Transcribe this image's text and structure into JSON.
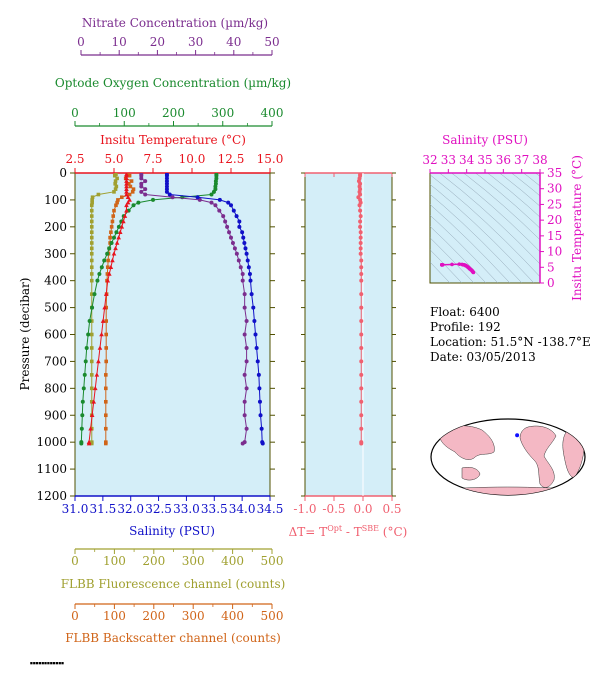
{
  "chart_data": {
    "type": "scatter",
    "colors": {
      "nitrate": "#7b2d8e",
      "oxygen": "#1a8a2e",
      "temperature": "#e8141e",
      "salinity": "#1010c8",
      "fluorescence": "#a0a030",
      "backscatter": "#d06418",
      "delta_t": "#f06070",
      "ts_salinity": "#e010c0",
      "plot_bg": "#d4eef8",
      "axis_dark": "#505000"
    },
    "axes": {
      "nitrate": {
        "label": "Nitrate Concentration (µm/kg)",
        "range": [
          0,
          50
        ],
        "ticks": [
          "0",
          "10",
          "20",
          "30",
          "40",
          "50"
        ]
      },
      "oxygen": {
        "label": "Optode Oxygen Concentration (µm/kg)",
        "range": [
          0,
          400
        ],
        "ticks": [
          "0",
          "100",
          "200",
          "300",
          "400"
        ]
      },
      "temperature": {
        "label": "Insitu Temperature (°C)",
        "range": [
          2.5,
          15.0
        ],
        "ticks": [
          "2.5",
          "5.0",
          "7.5",
          "10.0",
          "12.5",
          "15.0"
        ]
      },
      "pressure": {
        "label": "Pressure (decibar)",
        "range": [
          0,
          1200
        ],
        "ticks": [
          "0",
          "100",
          "200",
          "300",
          "400",
          "500",
          "600",
          "700",
          "800",
          "900",
          "1000",
          "1100",
          "1200"
        ]
      },
      "salinity": {
        "label": "Salinity (PSU)",
        "range": [
          31.0,
          34.5
        ],
        "ticks": [
          "31.0",
          "31.5",
          "32.0",
          "32.5",
          "33.0",
          "33.5",
          "34.0",
          "34.5"
        ]
      },
      "fluorescence": {
        "label": "FLBB Fluorescence channel (counts)",
        "range": [
          0,
          500
        ],
        "ticks": [
          "0",
          "100",
          "200",
          "300",
          "400",
          "500"
        ]
      },
      "backscatter": {
        "label": "FLBB Backscatter channel (counts)",
        "range": [
          0,
          500
        ],
        "ticks": [
          "0",
          "100",
          "200",
          "300",
          "400",
          "500"
        ]
      },
      "delta_t": {
        "label_main": "ΔT= T",
        "sup1": "Opt",
        "mid": " - T",
        "sup2": "SBE",
        "end": " (°C)",
        "range": [
          -1.0,
          0.5
        ],
        "ticks": [
          "-1.0",
          "-0.5",
          "0.0",
          "0.5"
        ]
      },
      "ts_salinity": {
        "label": "Salinity (PSU)",
        "range": [
          32,
          38
        ],
        "ticks": [
          "32",
          "33",
          "34",
          "35",
          "36",
          "37",
          "38"
        ]
      },
      "ts_temperature": {
        "label": "Insitu Temperature (°C)",
        "range": [
          0,
          35
        ],
        "ticks": [
          "0",
          "5",
          "10",
          "15",
          "20",
          "25",
          "30",
          "35"
        ]
      }
    },
    "profiles": {
      "pressure": [
        5,
        10,
        20,
        30,
        40,
        50,
        60,
        70,
        80,
        90,
        100,
        110,
        120,
        140,
        160,
        180,
        200,
        220,
        240,
        260,
        280,
        300,
        325,
        350,
        375,
        400,
        450,
        500,
        550,
        600,
        650,
        700,
        750,
        800,
        850,
        900,
        950,
        1000,
        1005
      ],
      "temperature": [
        5.8,
        5.8,
        5.8,
        5.8,
        5.8,
        5.8,
        5.8,
        5.8,
        5.8,
        5.9,
        6.0,
        5.9,
        5.8,
        5.8,
        5.7,
        5.6,
        5.5,
        5.4,
        5.3,
        5.2,
        5.1,
        5.0,
        4.9,
        4.8,
        4.7,
        4.6,
        4.5,
        4.4,
        4.3,
        4.2,
        4.1,
        4.0,
        3.9,
        3.8,
        3.7,
        3.6,
        3.5,
        3.4,
        3.4
      ],
      "salinity": [
        32.65,
        32.65,
        32.65,
        32.65,
        32.65,
        32.65,
        32.65,
        32.65,
        32.7,
        33.2,
        33.6,
        33.75,
        33.8,
        33.85,
        33.9,
        33.95,
        33.95,
        34.0,
        34.02,
        34.04,
        34.06,
        34.08,
        34.1,
        34.12,
        34.14,
        34.15,
        34.17,
        34.2,
        34.22,
        34.24,
        34.26,
        34.28,
        34.3,
        34.31,
        34.32,
        34.33,
        34.35,
        34.36,
        34.37
      ],
      "oxygen": [
        290,
        290,
        290,
        289,
        289,
        288,
        288,
        285,
        280,
        220,
        160,
        130,
        120,
        110,
        100,
        95,
        90,
        85,
        80,
        75,
        70,
        66,
        60,
        55,
        50,
        46,
        40,
        35,
        30,
        27,
        24,
        22,
        20,
        18,
        16,
        15,
        14,
        13,
        13
      ],
      "nitrate": [
        17,
        17,
        17,
        18,
        17,
        17,
        18,
        17,
        18,
        25,
        32,
        35,
        36,
        37,
        38,
        38.5,
        39,
        39.5,
        40,
        40.5,
        41,
        41.5,
        42,
        42.5,
        43,
        43,
        43.5,
        43.5,
        44,
        43.5,
        44,
        44,
        43.5,
        44,
        43.5,
        43.5,
        44,
        43.5,
        43
      ],
      "fluorescence": [
        105,
        102,
        108,
        104,
        103,
        106,
        104,
        100,
        60,
        45,
        44,
        44,
        43,
        43,
        43,
        43,
        43,
        43,
        43,
        43,
        43,
        43,
        43,
        43,
        43,
        43,
        43,
        43,
        43,
        43,
        43,
        43,
        43,
        43,
        43,
        43,
        43,
        43,
        43
      ],
      "backscatter": [
        135,
        140,
        130,
        145,
        138,
        142,
        150,
        148,
        140,
        120,
        110,
        108,
        105,
        100,
        98,
        96,
        94,
        92,
        90,
        90,
        88,
        86,
        85,
        84,
        83,
        82,
        81,
        80,
        80,
        80,
        80,
        80,
        79,
        79,
        79,
        79,
        79,
        79,
        79
      ],
      "delta_t": [
        -0.05,
        -0.05,
        -0.06,
        -0.07,
        -0.05,
        -0.06,
        -0.05,
        -0.06,
        -0.05,
        -0.08,
        -0.05,
        -0.04,
        -0.06,
        -0.05,
        -0.04,
        -0.05,
        -0.05,
        -0.04,
        -0.04,
        -0.04,
        -0.04,
        -0.04,
        -0.03,
        -0.03,
        -0.03,
        -0.03,
        -0.03,
        -0.03,
        -0.03,
        -0.03,
        -0.03,
        -0.03,
        -0.03,
        -0.03,
        -0.03,
        -0.03,
        -0.03,
        -0.03,
        -0.03
      ]
    },
    "info": {
      "float": "Float:  6400",
      "profile": "Profile:  192",
      "location": "Location:  51.5°N  -138.7°E",
      "date": "Date:  03/05/2013"
    },
    "float_location": {
      "lat": 51.5,
      "lon": -138.7
    }
  }
}
